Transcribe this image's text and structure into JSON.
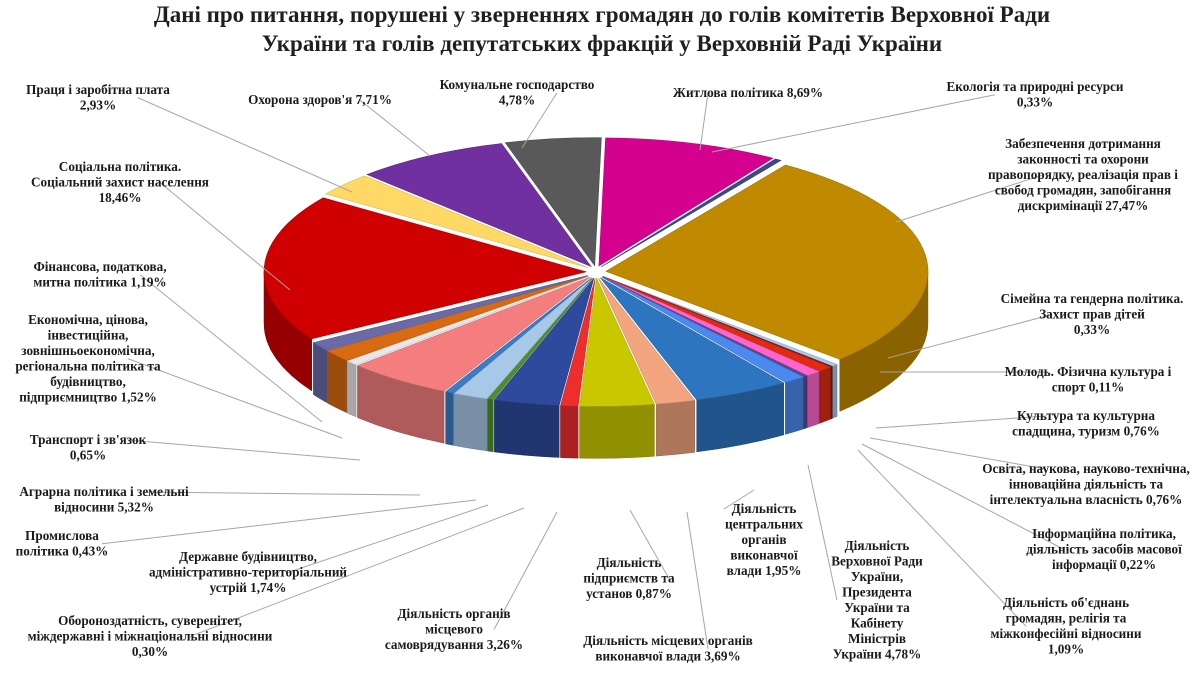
{
  "chart_data": {
    "type": "pie",
    "style": "3d-exploded",
    "title": "Дані про питання, порушені у зверненнях громадян до голів комітетів Верховної Ради України та голів депутатських фракцій у Верховній Раді України",
    "title_lines": [
      "Дані про питання, порушені у зверненнях громадян до голів комітетів Верховної Ради",
      "України та голів депутатських фракцій у Верховній Раді України"
    ],
    "slices": [
      {
        "name": "Житлова політика",
        "value": 8.69,
        "color": "#d4008e",
        "label_lines": [
          "Житлова політика 8,69%"
        ]
      },
      {
        "name": "Екологія та природні ресурси",
        "value": 0.33,
        "color": "#3b4a8c",
        "label_lines": [
          "Екологія та природні ресурси",
          "0,33%"
        ]
      },
      {
        "name": "Забезпечення дотримання законності та охорони правопорядку, реалізація прав і свобод громадян, запобігання дискримінації",
        "value": 27.47,
        "color": "#bf8a00",
        "label_lines": [
          "Забезпечення дотримання",
          "законності та охорони",
          "правопорядку, реалізація прав і",
          "свобод громадян, запобігання",
          "дискримінації 27,47%"
        ]
      },
      {
        "name": "Сімейна та гендерна політика. Захист прав дітей",
        "value": 0.33,
        "color": "#a6c8e8",
        "label_lines": [
          "Сімейна та гендерна політика.",
          "Захист прав дітей",
          "0,33%"
        ]
      },
      {
        "name": "Молодь. Фізична культура і спорт",
        "value": 0.11,
        "color": "#7a1a1a",
        "label_lines": [
          "Молодь. Фізична культура і",
          "спорт 0,11%"
        ]
      },
      {
        "name": "Культура та культурна спадщина, туризм",
        "value": 0.76,
        "color": "#e02b12",
        "label_lines": [
          "Культура та культурна",
          "спадщина, туризм 0,76%"
        ]
      },
      {
        "name": "Освіта, наукова, науково-технічна, інноваційна діяльність та інтелектуальна власність",
        "value": 0.76,
        "color": "#ff66cc",
        "label_lines": [
          "Освіта, наукова, науково-технічна,",
          "інноваційна діяльність та",
          "інтелектуальна власність 0,76%"
        ]
      },
      {
        "name": "Інформаційна політика, діяльність засобів масової інформації",
        "value": 0.22,
        "color": "#5b4a99",
        "label_lines": [
          "Інформаційна політика,",
          "діяльність засобів масової",
          "інформації  0,22%"
        ]
      },
      {
        "name": "Діяльність об'єднань громадян, релігія та міжконфесійні відносини",
        "value": 1.09,
        "color": "#4a8af0",
        "label_lines": [
          "Діяльність об'єднань",
          "громадян, релігія та",
          "міжконфесійні відносини",
          "1,09%"
        ]
      },
      {
        "name": "Діяльність Верховної Ради України, Президента України та Кабінету Міністрів України",
        "value": 4.78,
        "color": "#2e75c0",
        "label_lines": [
          "Діяльність",
          "Верховної Ради",
          "України,",
          "Президента",
          "України та",
          "Кабінету",
          "Міністрів",
          "України 4,78%"
        ]
      },
      {
        "name": "Діяльність центральних органів виконавчої влади",
        "value": 1.95,
        "color": "#f2a57e",
        "label_lines": [
          "Діяльність",
          "центральних",
          "органів",
          "виконавчої",
          "влади 1,95%"
        ]
      },
      {
        "name": "Діяльність місцевих органів виконавчої влади",
        "value": 3.69,
        "color": "#c9c800",
        "label_lines": [
          "Діяльність місцевих органів",
          "виконавчої влади 3,69%"
        ]
      },
      {
        "name": "Діяльність підприємств та установ",
        "value": 0.87,
        "color": "#ee2d2d",
        "label_lines": [
          "Діяльність",
          "підприємств та",
          "установ 0,87%"
        ]
      },
      {
        "name": "Діяльність органів місцевого самоврядування",
        "value": 3.26,
        "color": "#2e4a9c",
        "label_lines": [
          "Діяльність органів",
          "місцевого",
          "самоврядування  3,26%"
        ]
      },
      {
        "name": "Обороноздатність, суверенітет, міждержавні і міжнаціональні відносини",
        "value": 0.3,
        "color": "#4e8f2c",
        "label_lines": [
          "Обороноздатність, суверенітет,",
          "міждержавні і міжнаціональні відносини",
          "0,30%"
        ]
      },
      {
        "name": "Державне будівництво, адміністративно-територіальний устрій",
        "value": 1.74,
        "color": "#a8c8e8",
        "label_lines": [
          "Державне будівництво,",
          "адміністративно-територіальний",
          "устрій 1,74%"
        ]
      },
      {
        "name": "Промислова політика",
        "value": 0.43,
        "color": "#3a7cc8",
        "label_lines": [
          "Промислова",
          "політика 0,43%"
        ]
      },
      {
        "name": "Аграрна політика і земельні відносини",
        "value": 5.32,
        "color": "#f47e7e",
        "label_lines": [
          "Аграрна політика і земельні",
          "відносини 5,32%"
        ]
      },
      {
        "name": "Транспорт і зв'язок",
        "value": 0.65,
        "color": "#e8e8e8",
        "label_lines": [
          "Транспорт і зв'язок",
          "0,65%"
        ]
      },
      {
        "name": "Економічна, цінова, інвестиційна, зовнішньоекономічна, регіональна політика та будівництво, підприємництво",
        "value": 1.52,
        "color": "#d86a12",
        "label_lines": [
          "Економічна, цінова,",
          "інвестиційна,",
          "зовнішньоекономічна,",
          "регіональна політика та",
          "будівництво,",
          "підприємництво 1,52%"
        ]
      },
      {
        "name": "Фінансова, податкова, митна політика",
        "value": 1.19,
        "color": "#6a6aa8",
        "label_lines": [
          "Фінансова, податкова,",
          "митна політика 1,19%"
        ]
      },
      {
        "name": "Соціальна політика. Соціальний захист населення",
        "value": 18.46,
        "color": "#d00000",
        "label_lines": [
          "Соціальна політика.",
          "Соціальний захист населення",
          "18,46%"
        ]
      },
      {
        "name": "Праця і заробітна плата",
        "value": 2.93,
        "color": "#ffd966",
        "label_lines": [
          "Праця і заробітна плата",
          "2,93%"
        ]
      },
      {
        "name": "Охорона здоров'я",
        "value": 7.71,
        "color": "#7030a0",
        "label_lines": [
          "Охорона здоров'я 7,71%"
        ]
      },
      {
        "name": "Комунальне господарство",
        "value": 4.78,
        "color": "#595959",
        "label_lines": [
          "Комунальне господарство",
          "4,78%"
        ]
      }
    ]
  }
}
